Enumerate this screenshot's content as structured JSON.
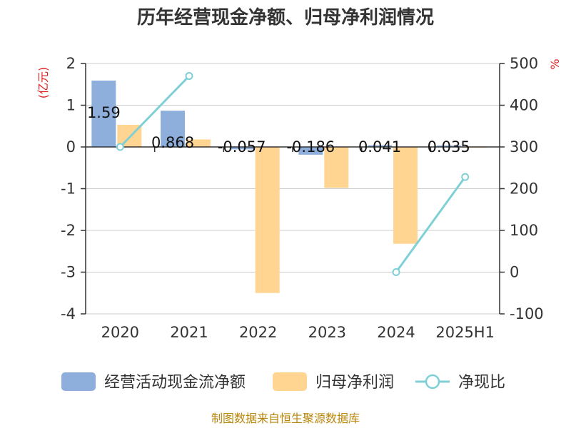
{
  "chart_data": {
    "type": "bar",
    "title": "历年经营现金净额、归母净利润情况",
    "categories": [
      "2020",
      "2021",
      "2022",
      "2023",
      "2024",
      "2025H1"
    ],
    "y_left": {
      "unit": "(亿元)",
      "range": [
        -4,
        2
      ],
      "ticks": [
        "2",
        "1",
        "0",
        "-1",
        "-2",
        "-3",
        "-4"
      ]
    },
    "y_right": {
      "unit": "%",
      "range": [
        -100,
        500
      ],
      "ticks": [
        "500",
        "400",
        "300",
        "200",
        "100",
        "0",
        "-100"
      ]
    },
    "series": [
      {
        "name": "经营活动现金流净额",
        "kind": "bar",
        "axis": "left",
        "color": "#8eaedc",
        "values": [
          1.59,
          0.868,
          -0.057,
          -0.186,
          0.041,
          0.035
        ],
        "labels": [
          "1.59",
          "0.868",
          "-0.057",
          "-0.186",
          "0.041",
          "0.035"
        ]
      },
      {
        "name": "归母净利润",
        "kind": "bar",
        "axis": "left",
        "color": "#ffd591",
        "values": [
          0.53,
          0.18,
          -3.5,
          -0.98,
          -2.32,
          -0.02
        ]
      },
      {
        "name": "净现比",
        "kind": "line",
        "axis": "right",
        "color": "#7fd0d6",
        "values": [
          300,
          470,
          null,
          null,
          0,
          228
        ]
      }
    ],
    "grid": true,
    "legend_position": "bottom"
  },
  "footer": {
    "source": "制图数据来自恒生聚源数据库"
  }
}
